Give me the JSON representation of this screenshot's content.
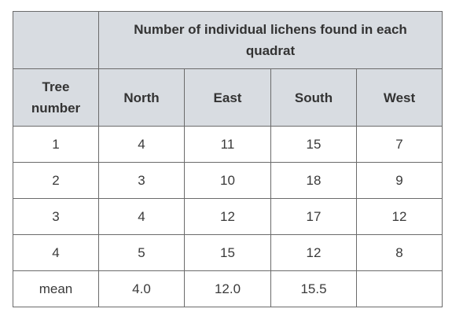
{
  "table": {
    "tree_header": "Tree number",
    "group_header": "Number of individual lichens found in each quadrat",
    "columns": [
      "North",
      "East",
      "South",
      "West"
    ],
    "rows": [
      {
        "label": "1",
        "values": [
          "4",
          "11",
          "15",
          "7"
        ]
      },
      {
        "label": "2",
        "values": [
          "3",
          "10",
          "18",
          "9"
        ]
      },
      {
        "label": "3",
        "values": [
          "4",
          "12",
          "17",
          "12"
        ]
      },
      {
        "label": "4",
        "values": [
          "5",
          "15",
          "12",
          "8"
        ]
      },
      {
        "label": "mean",
        "values": [
          "4.0",
          "12.0",
          "15.5",
          ""
        ]
      }
    ]
  },
  "colors": {
    "header_background": "#d8dce1",
    "border": "#6b6b6b",
    "text": "#2b2b2b"
  }
}
